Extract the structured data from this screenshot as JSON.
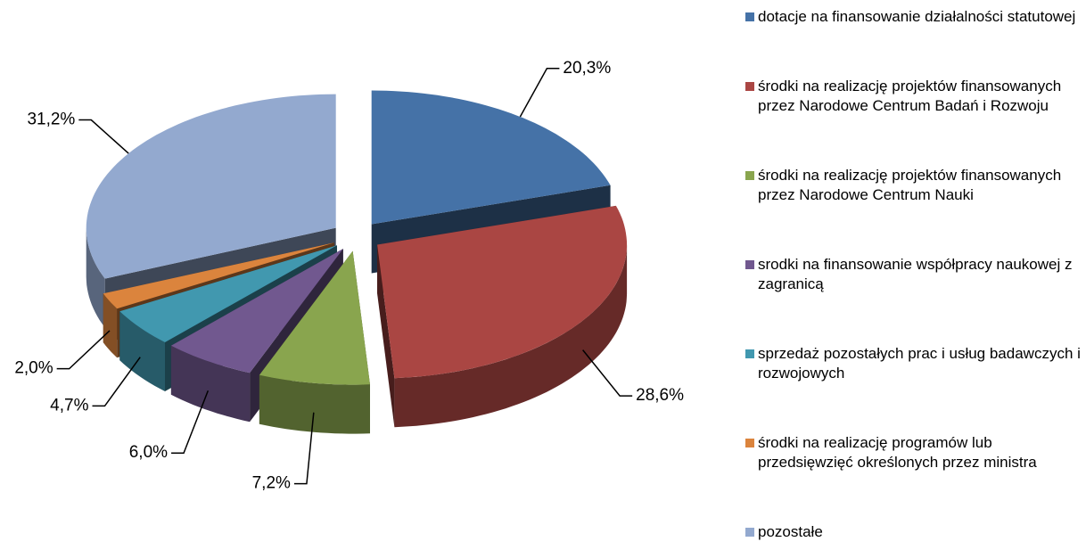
{
  "chart_data": {
    "type": "pie",
    "categories": [
      "dotacje na finansowanie działalności statutowej",
      "środki na realizację projektów finansowanych przez Narodowe Centrum Badań i Rozwoju",
      "środki na realizację projektów finansowanych przez Narodowe Centrum Nauki",
      "srodki na finansowanie współpracy naukowej z zagranicą",
      "sprzedaż pozostałych prac i usług badawczych i rozwojowych",
      "środki na realizację programów lub przedsięwzięć określonych przez ministra",
      "pozostałe"
    ],
    "values": [
      20.3,
      28.6,
      7.2,
      6.0,
      4.7,
      2.0,
      31.2
    ],
    "value_labels": [
      "20,3%",
      "28,6%",
      "7,2%",
      "6,0%",
      "4,7%",
      "2,0%",
      "31,2%"
    ],
    "colors": [
      "#4572a7",
      "#aa4643",
      "#89a54e",
      "#71588f",
      "#4198af",
      "#db843d",
      "#93a9cf"
    ],
    "legend": "right"
  }
}
